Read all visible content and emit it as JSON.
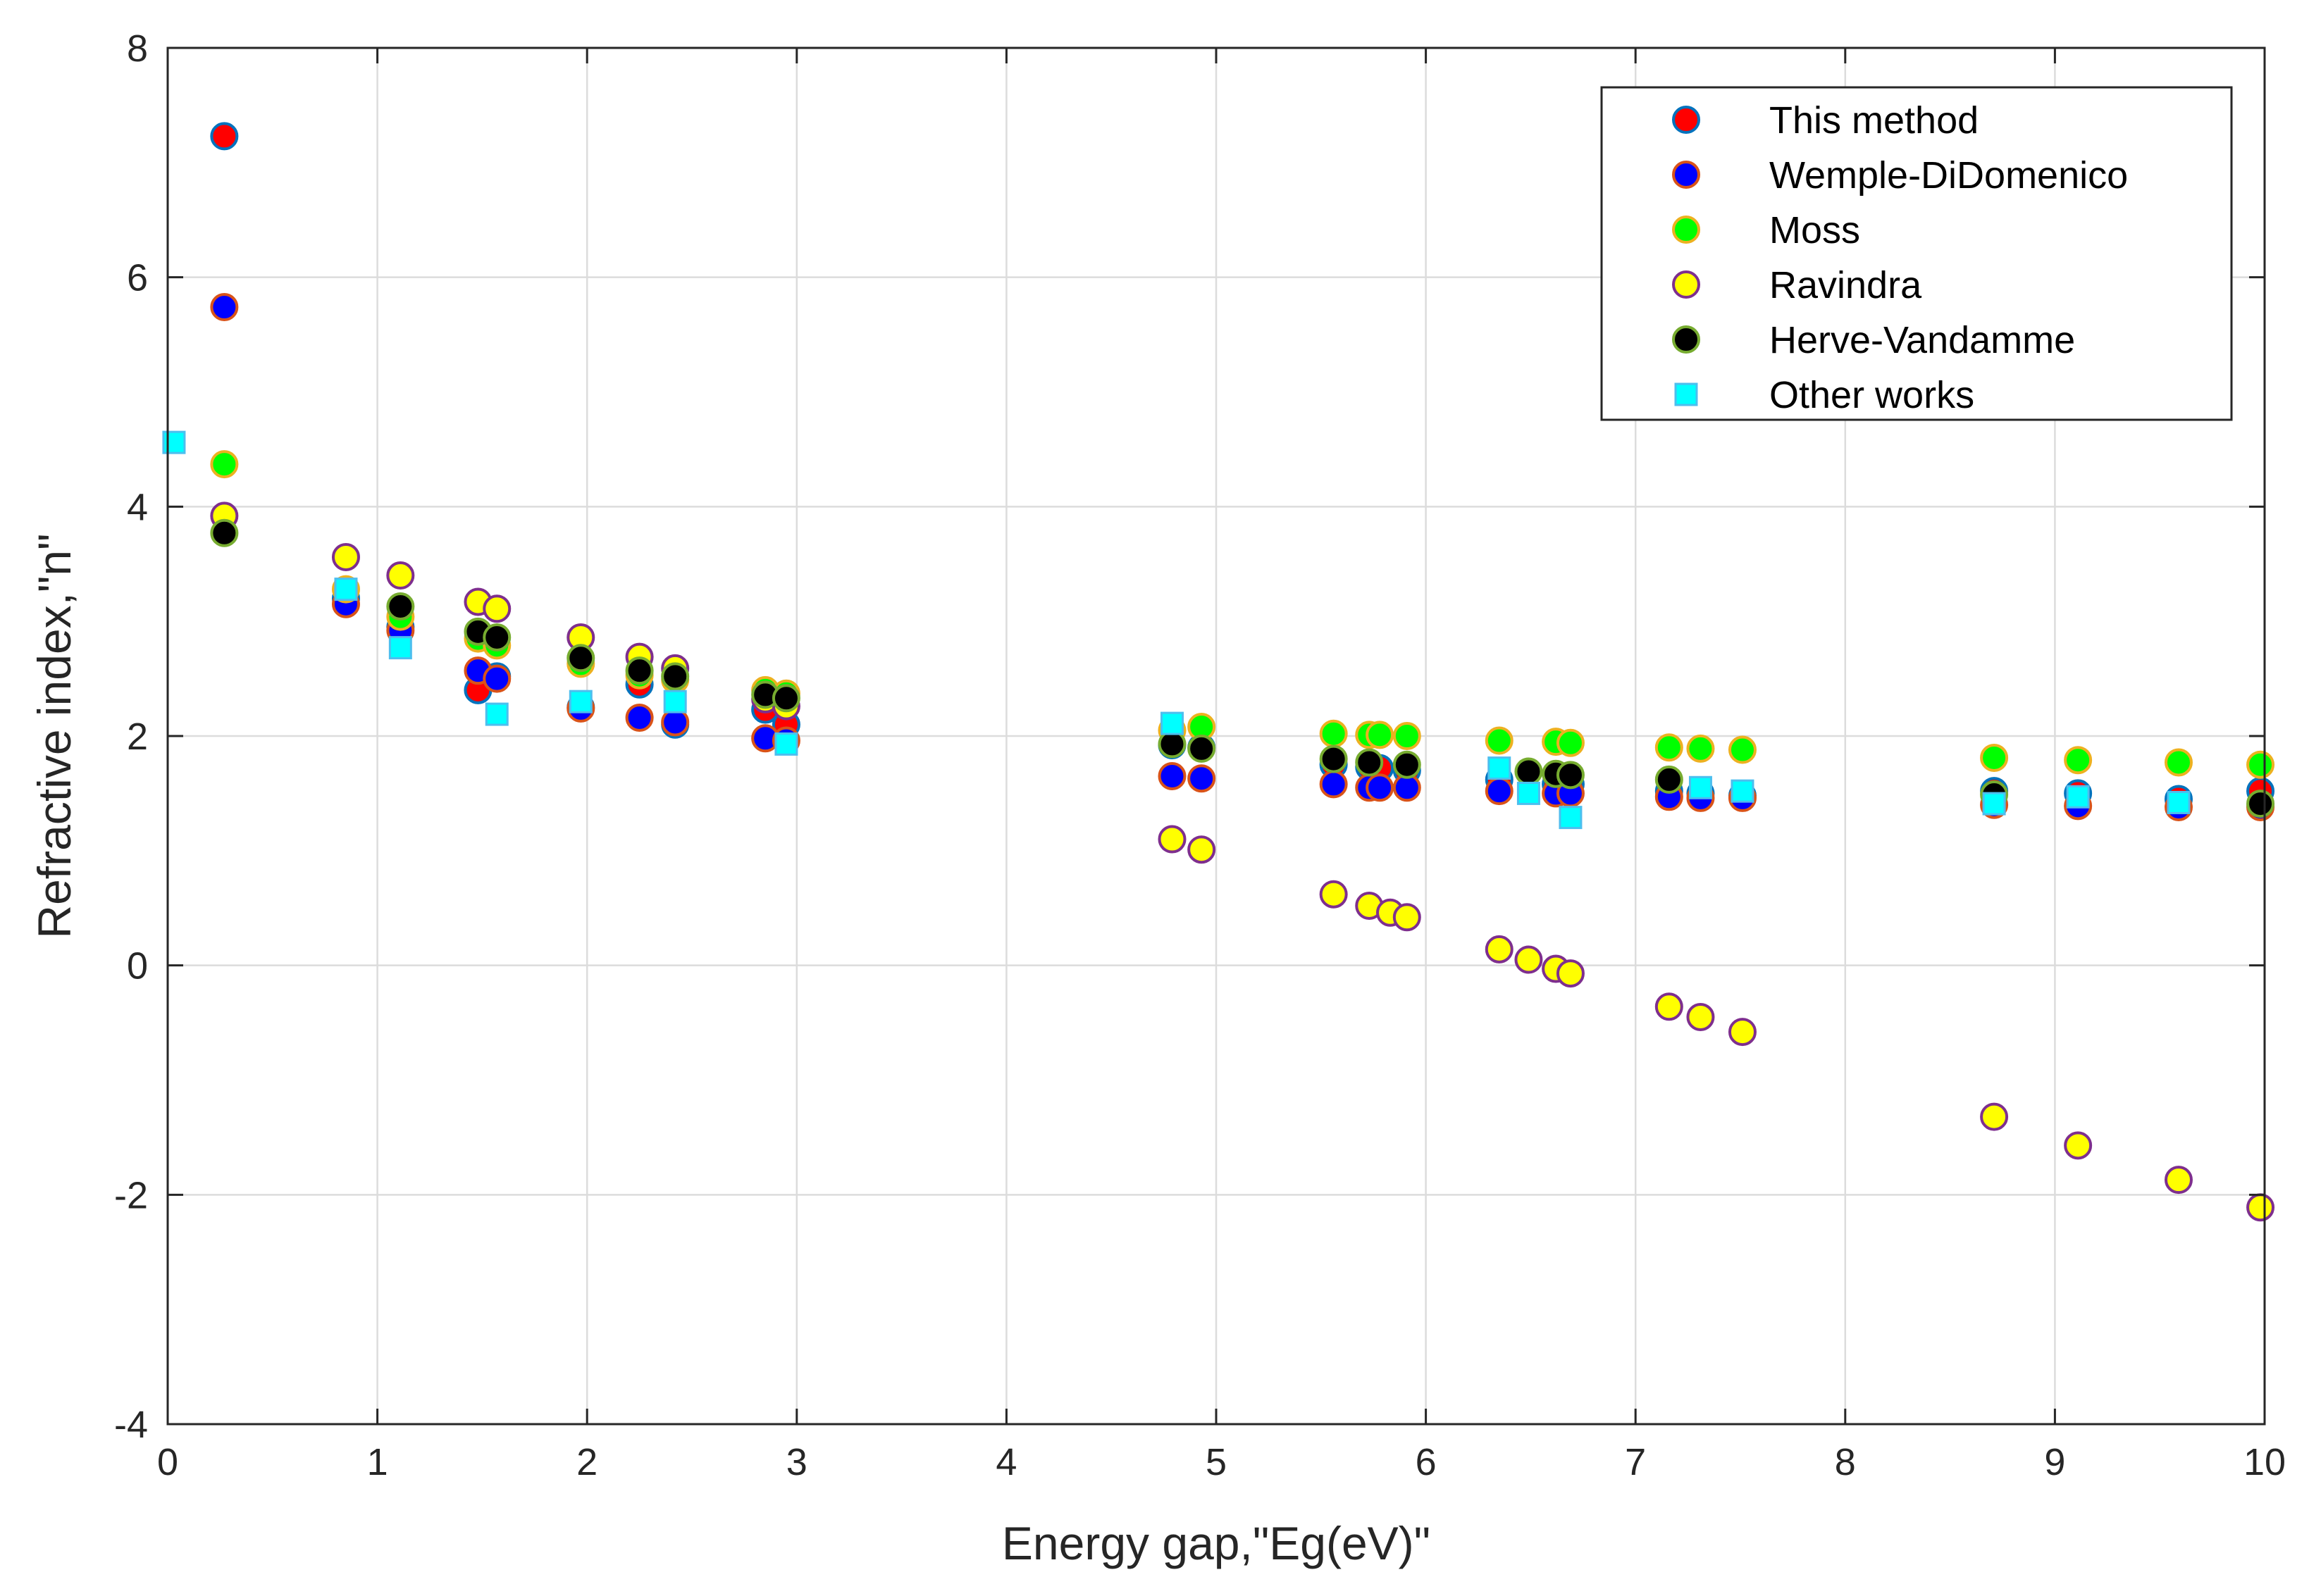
{
  "chart_data": {
    "type": "scatter",
    "title": "",
    "xlabel": "Energy gap,\"Eg(eV)\"",
    "ylabel": "Refractive index,\"n\"",
    "xlim": [
      0,
      10
    ],
    "ylim": [
      -4,
      8
    ],
    "xticks": [
      "0",
      "1",
      "2",
      "3",
      "4",
      "5",
      "6",
      "7",
      "8",
      "9",
      "10"
    ],
    "yticks": [
      "-4",
      "-2",
      "0",
      "2",
      "4",
      "6",
      "8"
    ],
    "grid": true,
    "legend_position": "top-right",
    "series": [
      {
        "name": "This method",
        "marker": "circle",
        "fill": "#ff0000",
        "edge": "#0072bd",
        "x": [
          0.27,
          0.85,
          1.11,
          1.48,
          1.57,
          1.97,
          2.25,
          2.42,
          2.85,
          2.95,
          4.79,
          4.93,
          5.56,
          5.73,
          5.78,
          5.91,
          6.35,
          6.62,
          6.69,
          7.16,
          7.31,
          7.51,
          8.71,
          9.11,
          9.59,
          9.98
        ],
        "y": [
          7.23,
          3.2,
          2.95,
          2.4,
          2.52,
          2.25,
          2.45,
          2.1,
          2.23,
          2.1,
          1.92,
          1.9,
          1.75,
          1.73,
          1.72,
          1.7,
          1.62,
          1.58,
          1.58,
          1.52,
          1.5,
          1.48,
          1.52,
          1.5,
          1.45,
          1.52
        ]
      },
      {
        "name": "Wemple-DiDomenico",
        "marker": "circle",
        "fill": "#0000ff",
        "edge": "#d95319",
        "x": [
          0.27,
          0.85,
          1.11,
          1.48,
          1.57,
          1.97,
          2.25,
          2.42,
          2.85,
          2.95,
          4.79,
          4.93,
          5.56,
          5.73,
          5.78,
          5.91,
          6.35,
          6.62,
          6.69,
          7.16,
          7.31,
          7.51,
          8.71,
          9.11,
          9.59,
          9.98
        ],
        "y": [
          5.74,
          3.15,
          2.92,
          2.57,
          2.5,
          2.24,
          2.16,
          2.12,
          1.98,
          1.96,
          1.65,
          1.63,
          1.58,
          1.55,
          1.55,
          1.55,
          1.52,
          1.5,
          1.5,
          1.47,
          1.46,
          1.46,
          1.4,
          1.39,
          1.38,
          1.38
        ]
      },
      {
        "name": "Moss",
        "marker": "circle",
        "fill": "#00ff00",
        "edge": "#edb120",
        "x": [
          0.27,
          0.85,
          1.11,
          1.48,
          1.57,
          1.97,
          2.25,
          2.42,
          2.85,
          2.95,
          4.79,
          4.93,
          5.56,
          5.73,
          5.78,
          5.91,
          6.35,
          6.62,
          6.69,
          7.16,
          7.31,
          7.51,
          8.71,
          9.11,
          9.59,
          9.98
        ],
        "y": [
          4.37,
          3.28,
          3.04,
          2.85,
          2.79,
          2.63,
          2.53,
          2.49,
          2.4,
          2.37,
          2.05,
          2.08,
          2.02,
          2.01,
          2.01,
          2.0,
          1.96,
          1.95,
          1.94,
          1.9,
          1.89,
          1.88,
          1.81,
          1.79,
          1.77,
          1.75
        ]
      },
      {
        "name": "Ravindra",
        "marker": "circle",
        "fill": "#ffff00",
        "edge": "#7e2f8e",
        "x": [
          0.27,
          0.85,
          1.11,
          1.48,
          1.57,
          1.97,
          2.25,
          2.42,
          2.85,
          2.95,
          4.79,
          4.93,
          5.56,
          5.73,
          5.83,
          5.91,
          6.35,
          6.49,
          6.62,
          6.69,
          7.16,
          7.31,
          7.51,
          8.71,
          9.11,
          9.59,
          9.98
        ],
        "y": [
          3.92,
          3.56,
          3.4,
          3.17,
          3.11,
          2.86,
          2.69,
          2.59,
          2.32,
          2.26,
          1.1,
          1.01,
          0.62,
          0.52,
          0.46,
          0.42,
          0.14,
          0.05,
          -0.03,
          -0.07,
          -0.36,
          -0.45,
          -0.58,
          -1.32,
          -1.57,
          -1.87,
          -2.11
        ]
      },
      {
        "name": "Herve-Vandamme",
        "marker": "circle",
        "fill": "#000000",
        "edge": "#77ac30",
        "x": [
          0.27,
          1.11,
          1.48,
          1.57,
          1.97,
          2.25,
          2.42,
          2.85,
          2.95,
          4.79,
          4.93,
          5.56,
          5.73,
          5.91,
          6.49,
          6.62,
          6.69,
          7.16,
          8.71,
          9.98
        ],
        "y": [
          3.77,
          3.13,
          2.91,
          2.86,
          2.68,
          2.57,
          2.52,
          2.36,
          2.33,
          1.93,
          1.89,
          1.8,
          1.77,
          1.75,
          1.69,
          1.67,
          1.66,
          1.62,
          1.49,
          1.41
        ]
      },
      {
        "name": "Other works",
        "marker": "square",
        "fill": "#00ffff",
        "edge": "#4dbeee",
        "x": [
          0.03,
          0.85,
          1.11,
          1.57,
          1.97,
          2.42,
          2.95,
          4.79,
          6.35,
          6.49,
          6.69,
          7.31,
          7.51,
          8.71,
          9.11,
          9.59
        ],
        "y": [
          4.56,
          3.28,
          2.77,
          2.19,
          2.3,
          2.3,
          1.93,
          2.11,
          1.72,
          1.5,
          1.29,
          1.55,
          1.52,
          1.41,
          1.47,
          1.42
        ]
      }
    ]
  }
}
